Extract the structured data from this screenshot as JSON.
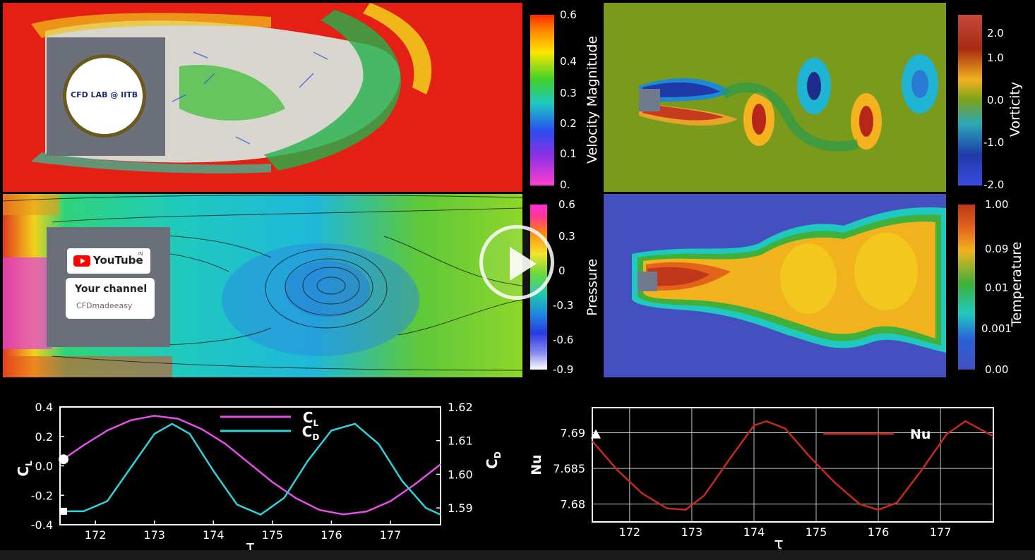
{
  "colorbars": {
    "velocity": {
      "title": "Velocity Magnitude",
      "ticks": [
        "0.6",
        "0.4",
        "0.3",
        "0.2",
        "0.1",
        "0."
      ]
    },
    "vorticity": {
      "title": "Vorticity",
      "ticks": [
        "2.0",
        "1.0",
        "0.0",
        "-1.0",
        "-2.0"
      ]
    },
    "pressure": {
      "title": "Pressure",
      "ticks": [
        "0.6",
        "0.3",
        "0",
        "-0.3",
        "-0.6",
        "-0.9"
      ]
    },
    "temperature": {
      "title": "Temperature",
      "ticks": [
        "1.00",
        "0.09",
        "0.01",
        "0.001",
        "0.00"
      ]
    }
  },
  "overlay": {
    "logo_text": "CFD LAB @ IITB",
    "youtube_label": "YouTube",
    "youtube_region": "IN",
    "channel_line": "Your channel",
    "channel_name": "CFDmadeeasy"
  },
  "colors": {
    "cl": "#e84ee8",
    "cd": "#2fd3dc",
    "nu": "#c62a1e"
  },
  "chart_data": [
    {
      "type": "line",
      "x_ticks": [
        "172",
        "173",
        "174",
        "175",
        "176",
        "177"
      ],
      "xlabel": "τ",
      "ylabel_left": "C_L",
      "ylabel_right": "C_D",
      "ylim_left": [
        -0.4,
        0.4
      ],
      "y_ticks_left": [
        "0.4",
        "0.2",
        "0.0",
        "-0.2",
        "-0.4"
      ],
      "ylim_right": [
        1.585,
        1.62
      ],
      "y_ticks_right": [
        "1.62",
        "1.61",
        "1.60",
        "1.59"
      ],
      "xlim": [
        171.4,
        177.85
      ],
      "series": [
        {
          "name": "C_L",
          "axis": "left",
          "x": [
            171.4,
            171.8,
            172.2,
            172.6,
            173.0,
            173.4,
            173.8,
            174.2,
            174.6,
            175.0,
            175.4,
            175.8,
            176.2,
            176.6,
            177.0,
            177.4,
            177.85
          ],
          "y": [
            0.03,
            0.14,
            0.24,
            0.31,
            0.34,
            0.32,
            0.25,
            0.15,
            0.02,
            -0.11,
            -0.22,
            -0.3,
            -0.33,
            -0.31,
            -0.24,
            -0.13,
            0.01
          ]
        },
        {
          "name": "C_D",
          "axis": "right",
          "x": [
            171.4,
            171.8,
            172.2,
            172.6,
            173.0,
            173.3,
            173.6,
            174.0,
            174.4,
            174.8,
            175.2,
            175.6,
            176.0,
            176.4,
            176.8,
            177.2,
            177.6,
            177.85
          ],
          "y": [
            1.589,
            1.589,
            1.592,
            1.602,
            1.612,
            1.615,
            1.612,
            1.601,
            1.591,
            1.588,
            1.593,
            1.604,
            1.613,
            1.615,
            1.609,
            1.598,
            1.59,
            1.588
          ]
        }
      ]
    },
    {
      "type": "line",
      "x_ticks": [
        "172",
        "173",
        "174",
        "175",
        "176",
        "177"
      ],
      "xlabel": "τ",
      "ylabel": "Nu",
      "ylim": [
        7.6775,
        7.6935
      ],
      "y_ticks": [
        "7.69",
        "7.685",
        "7.68"
      ],
      "xlim": [
        171.4,
        177.85
      ],
      "series": [
        {
          "name": "Nu",
          "x": [
            171.4,
            171.8,
            172.2,
            172.6,
            172.9,
            173.2,
            173.6,
            174.0,
            174.2,
            174.5,
            174.9,
            175.3,
            175.7,
            176.0,
            176.3,
            176.7,
            177.1,
            177.4,
            177.85
          ],
          "y": [
            7.6888,
            7.6848,
            7.6815,
            7.6794,
            7.6792,
            7.6812,
            7.6862,
            7.691,
            7.6916,
            7.6906,
            7.6866,
            7.683,
            7.68,
            7.6792,
            7.6802,
            7.6848,
            7.6898,
            7.6916,
            7.6895
          ]
        }
      ]
    }
  ]
}
